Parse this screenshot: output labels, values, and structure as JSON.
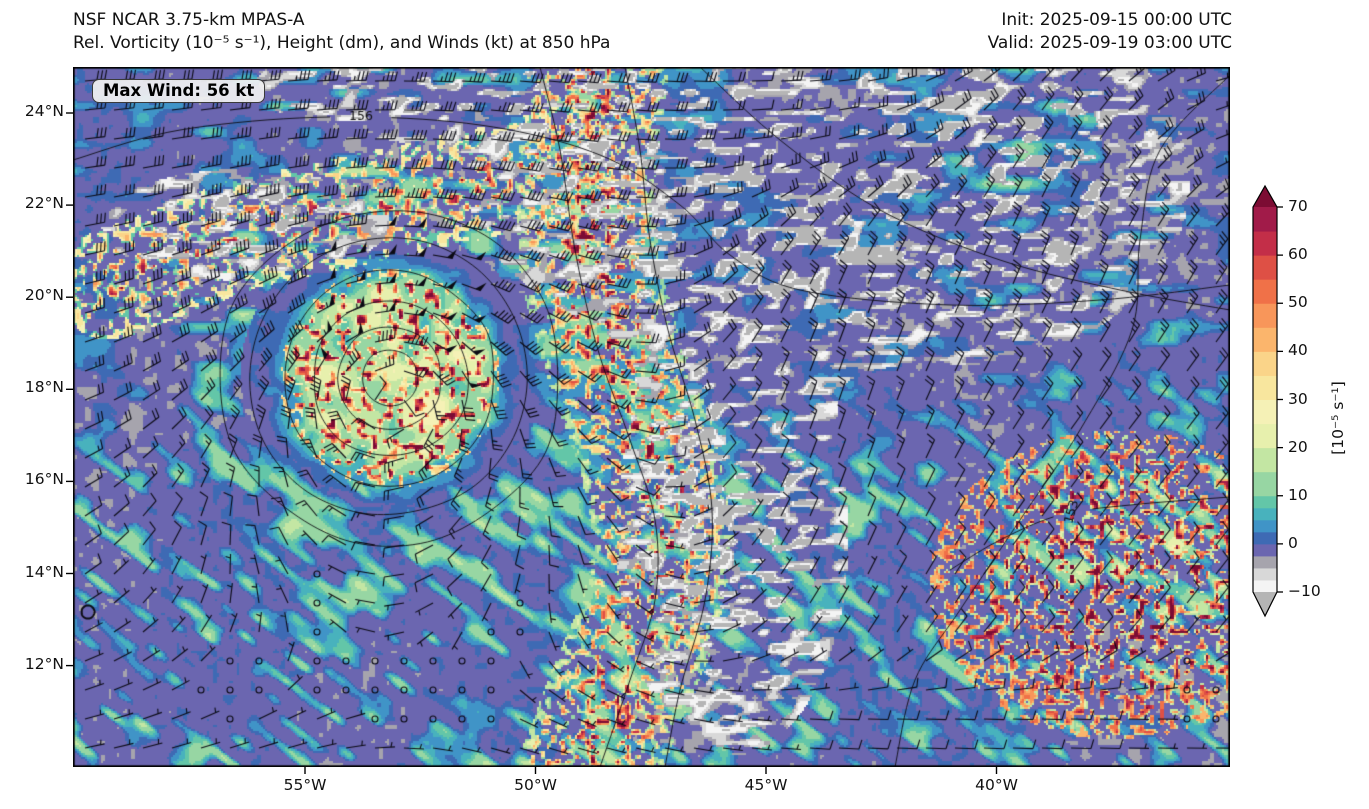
{
  "header": {
    "title": "NSF NCAR 3.75-km MPAS-A",
    "subtitle": "Rel. Vorticity (10⁻⁵ s⁻¹), Height (dm), and Winds (kt) at 850 hPa",
    "init_time": "Init: 2025-09-15 00:00 UTC",
    "valid_time": "Valid: 2025-09-19 03:00 UTC"
  },
  "chart_data": {
    "type": "heatmap",
    "title": "NSF NCAR 3.75-km MPAS-A",
    "subtitle": "Rel. Vorticity (10⁻⁵ s⁻¹), Height (dm), and Winds (kt) at 850 hPa",
    "shaded_field": "Relative Vorticity (10⁻⁵ s⁻¹)",
    "contour_field": "Geopotential Height (dm)",
    "vector_field": "Winds (kt)",
    "level": "850 hPa",
    "x_axis": {
      "ticks": [
        "55°W",
        "50°W",
        "45°W",
        "40°W"
      ],
      "lon_range_deg_w": [
        60.0,
        34.9
      ]
    },
    "y_axis": {
      "ticks": [
        "24°N",
        "22°N",
        "20°N",
        "18°N",
        "16°N",
        "14°N",
        "12°N"
      ],
      "lat_range_deg_n": [
        9.8,
        25.0
      ]
    },
    "colorbar": {
      "label": "[10⁻⁵ s⁻¹]",
      "ticks_values": [
        70,
        60,
        50,
        40,
        30,
        20,
        10,
        0,
        -10
      ],
      "ticks_labels": [
        "70",
        "60",
        "50",
        "40",
        "30",
        "20",
        "10",
        "0",
        "−10"
      ],
      "levels": [
        -10,
        -7.5,
        -5,
        -2.5,
        0,
        2.5,
        5,
        7.5,
        10,
        15,
        20,
        25,
        30,
        35,
        40,
        45,
        50,
        55,
        60,
        65,
        70
      ],
      "colors": [
        "#f4f4f4",
        "#d8d8d8",
        "#a6a4ad",
        "#6b66b0",
        "#3e6ab4",
        "#4094c7",
        "#48b2bd",
        "#63c6a8",
        "#97d6a3",
        "#c3e6a3",
        "#e7f0ad",
        "#f5f1b6",
        "#f8e69e",
        "#fad489",
        "#fbb56c",
        "#f8965a",
        "#f07148",
        "#de5045",
        "#c32e48",
        "#a11b49"
      ],
      "under": "#b5b5b5",
      "over": "#7c0c33",
      "extend": "both"
    },
    "annotations": {
      "max_wind": "Max Wind: 56 kt",
      "max_wind_kt": 56,
      "contour_labels": [
        {
          "text": "156",
          "lon": "53.8°W",
          "lat": "23.9°N"
        },
        {
          "text": "153",
          "lon": "38.4°W",
          "lat": "15.3°N"
        }
      ]
    },
    "features": [
      {
        "name": "tropical-cyclone",
        "lon": "53.2°W",
        "lat": "18.3°N",
        "description": "Closed cyclonic circulation with concentric height contours and a ring of strong vorticity (40–70) around a calmer cream-colored core"
      },
      {
        "name": "meridional-vorticity-band",
        "description": "Speckled band of strong positive vorticity (30–70) from ~47°W 24°N curving SSW to ~48°W 11°N"
      },
      {
        "name": "northwest-vorticity-band",
        "description": "Speckled vorticity band near 54–58°W, 21–23°N"
      },
      {
        "name": "southeast-speckled-region",
        "description": "Field of many small intense vorticity maxima near 35–39°W, 11–16°N"
      },
      {
        "name": "negative-vorticity-filaments",
        "description": "White/gray filaments of negative vorticity (−5 to −10) near 43–48°W, 20–24°N and along the east side of the band"
      },
      {
        "name": "calm-wind-regions",
        "description": "Calm-wind circles near 51–53°W 11–13°N and 35–36°W 10–12°N"
      }
    ],
    "grid": false,
    "legend_position": "right-colorbar"
  }
}
